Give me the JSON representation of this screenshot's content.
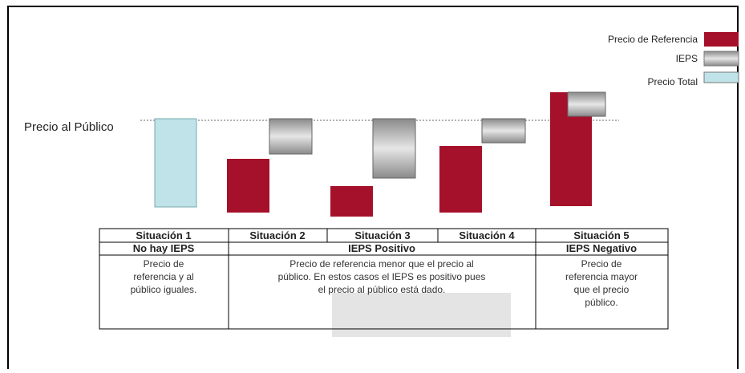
{
  "legend": [
    "Precio de Referencia",
    "IEPS",
    "Precio Total"
  ],
  "reference_line_label": "Precio al Público",
  "table": {
    "headers": [
      "Situación 1",
      "Situación 2",
      "Situación 3",
      "Situación 4",
      "Situación 5"
    ],
    "groups": [
      "No hay IEPS",
      "IEPS Positivo",
      "IEPS Negativo"
    ],
    "descriptions": [
      [
        "Precio de",
        "referencia y al",
        "público iguales."
      ],
      [
        "Precio de referencia menor que el precio al",
        "público. En estos casos el IEPS es positivo pues",
        "el precio al público está dado."
      ],
      [
        "Precio de",
        "referencia mayor",
        "que el precio",
        "público."
      ]
    ]
  }
}
